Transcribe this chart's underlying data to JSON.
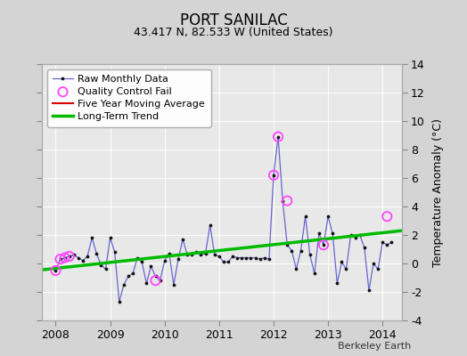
{
  "title": "PORT SANILAC",
  "subtitle": "43.417 N, 82.533 W (United States)",
  "ylabel": "Temperature Anomaly (°C)",
  "footer": "Berkeley Earth",
  "ylim": [
    -4,
    14
  ],
  "xlim": [
    2007.75,
    2014.35
  ],
  "yticks": [
    -4,
    -2,
    0,
    2,
    4,
    6,
    8,
    10,
    12,
    14
  ],
  "xticks": [
    2008,
    2009,
    2010,
    2011,
    2012,
    2013,
    2014
  ],
  "fig_bg_color": "#d4d4d4",
  "plot_bg_color": "#e8e8e8",
  "raw_x": [
    2008.0,
    2008.083,
    2008.167,
    2008.25,
    2008.333,
    2008.417,
    2008.5,
    2008.583,
    2008.667,
    2008.75,
    2008.833,
    2008.917,
    2009.0,
    2009.083,
    2009.167,
    2009.25,
    2009.333,
    2009.417,
    2009.5,
    2009.583,
    2009.667,
    2009.75,
    2009.833,
    2009.917,
    2010.0,
    2010.083,
    2010.167,
    2010.25,
    2010.333,
    2010.417,
    2010.5,
    2010.583,
    2010.667,
    2010.75,
    2010.833,
    2010.917,
    2011.0,
    2011.083,
    2011.167,
    2011.25,
    2011.333,
    2011.417,
    2011.5,
    2011.583,
    2011.667,
    2011.75,
    2011.833,
    2011.917,
    2012.0,
    2012.083,
    2012.167,
    2012.25,
    2012.333,
    2012.417,
    2012.5,
    2012.583,
    2012.667,
    2012.75,
    2012.833,
    2012.917,
    2013.0,
    2013.083,
    2013.167,
    2013.25,
    2013.333,
    2013.417,
    2013.5,
    2013.583,
    2013.667,
    2013.75,
    2013.833,
    2013.917,
    2014.0,
    2014.083,
    2014.167
  ],
  "raw_y": [
    -0.5,
    0.3,
    0.4,
    0.5,
    0.6,
    0.4,
    0.2,
    0.5,
    1.8,
    0.7,
    -0.1,
    -0.4,
    1.8,
    0.8,
    -2.7,
    -1.5,
    -0.9,
    -0.7,
    0.4,
    0.1,
    -1.4,
    -0.2,
    -0.9,
    -1.2,
    0.2,
    0.7,
    -1.5,
    0.3,
    1.7,
    0.6,
    0.6,
    0.8,
    0.6,
    0.7,
    2.7,
    0.6,
    0.5,
    0.1,
    0.1,
    0.5,
    0.4,
    0.4,
    0.4,
    0.4,
    0.4,
    0.3,
    0.4,
    0.3,
    6.2,
    8.9,
    4.4,
    1.3,
    0.9,
    -0.4,
    0.9,
    3.3,
    0.6,
    -0.7,
    2.1,
    1.3,
    3.3,
    2.1,
    -1.4,
    0.1,
    -0.4,
    2.0,
    1.8,
    2.0,
    1.1,
    -1.9,
    0.0,
    -0.4,
    1.5,
    1.3,
    1.5
  ],
  "qc_fail_x": [
    2008.0,
    2008.083,
    2008.167,
    2008.25,
    2009.833,
    2012.0,
    2012.083,
    2012.25,
    2012.917,
    2014.083
  ],
  "qc_fail_y": [
    -0.5,
    0.3,
    0.4,
    0.5,
    -1.2,
    6.2,
    8.9,
    4.4,
    1.3,
    3.3
  ],
  "trend_x": [
    2007.75,
    2014.35
  ],
  "trend_y": [
    -0.45,
    2.3
  ],
  "line_color": "#6666cc",
  "marker_color": "#111111",
  "qc_color": "#ff44ff",
  "trend_color": "#00bb00",
  "mavg_color": "#dd0000",
  "grid_color": "#ffffff"
}
